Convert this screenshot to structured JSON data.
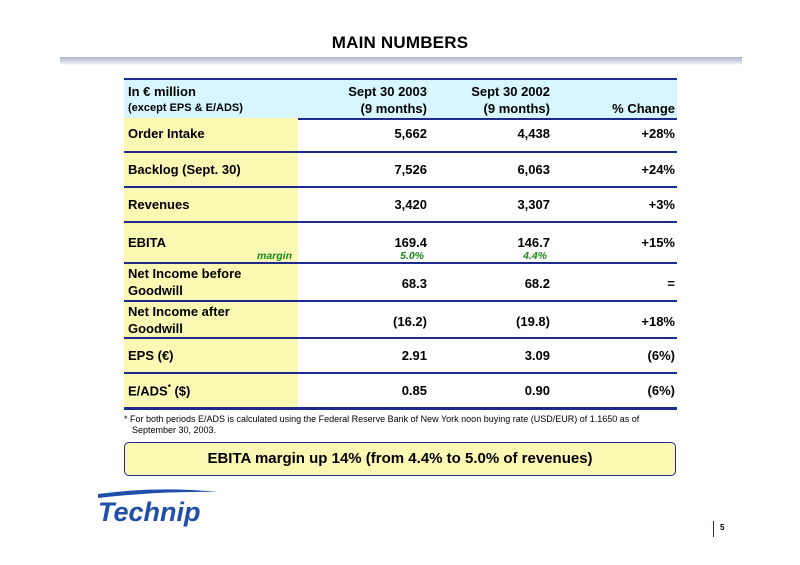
{
  "title": "MAIN NUMBERS",
  "header": {
    "col0_line1": "In € million",
    "col0_line2": "(except EPS & E/ADS)",
    "col1_line1": "Sept 30 2003",
    "col1_line2": "(9 months)",
    "col2_line1": "Sept 30 2002",
    "col2_line2": "(9 months)",
    "col3": "% Change"
  },
  "rows": [
    {
      "label": "Order Intake",
      "v2003": "5,662",
      "v2002": "4,438",
      "change": "+28%"
    },
    {
      "label": "Backlog (Sept. 30)",
      "v2003": "7,526",
      "v2002": "6,063",
      "change": "+24%"
    },
    {
      "label": "Revenues",
      "v2003": "3,420",
      "v2002": "3,307",
      "change": "+3%"
    },
    {
      "label": "EBITA",
      "v2003": "169.4",
      "v2002": "146.7",
      "change": "+15%",
      "sub_label": "margin",
      "sub_2003": "5.0%",
      "sub_2002": "4.4%"
    },
    {
      "label_line1": "Net Income before",
      "label_line2": "Goodwill",
      "v2003": "68.3",
      "v2002": "68.2",
      "change": "="
    },
    {
      "label_line1": "Net Income after",
      "label_line2": "Goodwill",
      "v2003": "(16.2)",
      "v2002": "(19.8)",
      "change": "+18%"
    },
    {
      "label": "EPS (€)",
      "v2003": "2.91",
      "v2002": "3.09",
      "change": "(6%)"
    },
    {
      "label": "E/ADS",
      "label_sup": "*",
      "label_suffix": " ($)",
      "v2003": "0.85",
      "v2002": "0.90",
      "change": "(6%)"
    }
  ],
  "footnote_line1": "* For both periods E/ADS is calculated using the Federal Reserve Bank of New York noon buying rate  (USD/EUR) of 1.1650 as of",
  "footnote_line2": "September 30, 2003.",
  "banner": "EBITA margin up 14% (from 4.4% to 5.0% of revenues)",
  "logo_text": "Technip",
  "page_number": "5",
  "colors": {
    "navy": "#1e2a8c",
    "header_bg": "#d7f6fd",
    "label_bg": "#fbf8b4",
    "margin_green": "#1a8a1a",
    "logo_blue": "#1f4fa8"
  }
}
